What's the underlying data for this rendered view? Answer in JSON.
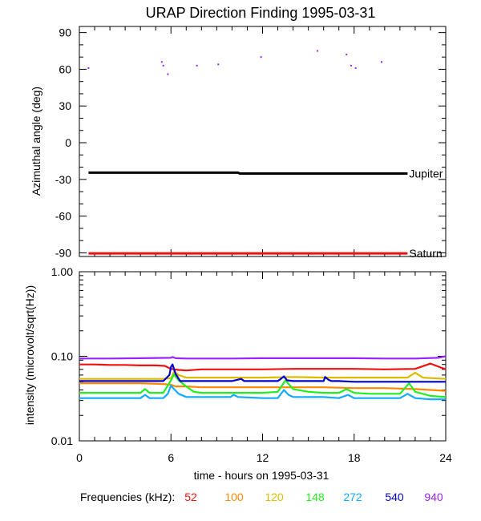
{
  "title": "URAP Direction Finding  1995-03-31",
  "chart_data": [
    {
      "type": "scatter",
      "panel": "top",
      "ylabel": "Azimuthal angle (deg)",
      "xlim": [
        0,
        24
      ],
      "ylim": [
        -93,
        95
      ],
      "yticks": [
        "90",
        "60",
        "30",
        "0",
        "-30",
        "-60",
        "-90"
      ],
      "yticks_values": [
        90,
        60,
        30,
        0,
        -30,
        -60,
        -90
      ],
      "purple_points": {
        "name": "940 kHz",
        "color": "#9922ff",
        "points": [
          [
            0.6,
            61
          ],
          [
            5.4,
            66
          ],
          [
            5.5,
            63
          ],
          [
            5.8,
            56
          ],
          [
            7.7,
            63
          ],
          [
            9.1,
            64
          ],
          [
            11.9,
            70
          ],
          [
            15.6,
            75
          ],
          [
            17.5,
            72
          ],
          [
            17.8,
            63
          ],
          [
            18.1,
            61
          ],
          [
            19.8,
            66
          ]
        ]
      },
      "reference_lines": [
        {
          "name": "Jupiter",
          "color": "#000000",
          "x": [
            0.6,
            10.4,
            10.5,
            21.5
          ],
          "y": [
            -24.5,
            -24.5,
            -25.2,
            -25.2
          ]
        },
        {
          "name": "Saturn",
          "color": "#ee1111",
          "x": [
            0.6,
            21.5
          ],
          "y": [
            -90.5,
            -90.5
          ]
        }
      ]
    },
    {
      "type": "line",
      "panel": "bottom",
      "ylabel": "intensity (microvolt/sqrt(Hz))",
      "xlabel": "time - hours on 1995-03-31",
      "xlim": [
        0,
        24
      ],
      "ylim": [
        0.01,
        1.0
      ],
      "yscale": "log",
      "yticks": [
        "1.00",
        "0.10",
        "0.01"
      ],
      "yticks_values": [
        1.0,
        0.1,
        0.01
      ],
      "xticks": [
        "0",
        "6",
        "12",
        "18",
        "24"
      ],
      "xticks_values": [
        0,
        6,
        12,
        18,
        24
      ],
      "series": [
        {
          "name": "52",
          "color": "#ee1111",
          "x": [
            0,
            1,
            2,
            3,
            4,
            5,
            5.6,
            6,
            6.5,
            7,
            8,
            10,
            12,
            14,
            16,
            18,
            20,
            22,
            23,
            24
          ],
          "y": [
            0.08,
            0.08,
            0.079,
            0.079,
            0.078,
            0.078,
            0.077,
            0.071,
            0.069,
            0.068,
            0.07,
            0.07,
            0.07,
            0.071,
            0.071,
            0.071,
            0.07,
            0.071,
            0.082,
            0.07
          ]
        },
        {
          "name": "100",
          "color": "#ff8800",
          "x": [
            0,
            2,
            4,
            5.5,
            6,
            6.3,
            7,
            8,
            10,
            12,
            14,
            16,
            18,
            20,
            22,
            24
          ],
          "y": [
            0.048,
            0.048,
            0.048,
            0.047,
            0.046,
            0.044,
            0.044,
            0.043,
            0.043,
            0.043,
            0.043,
            0.043,
            0.042,
            0.042,
            0.041,
            0.039
          ]
        },
        {
          "name": "120",
          "color": "#ddbb00",
          "x": [
            0,
            2,
            4,
            5.5,
            6,
            6.2,
            6.5,
            7,
            8,
            10,
            12,
            14,
            16,
            18,
            20,
            21.5,
            22,
            22.5,
            24
          ],
          "y": [
            0.054,
            0.054,
            0.054,
            0.054,
            0.055,
            0.066,
            0.06,
            0.056,
            0.056,
            0.056,
            0.056,
            0.057,
            0.056,
            0.056,
            0.056,
            0.056,
            0.064,
            0.056,
            0.054
          ]
        },
        {
          "name": "148",
          "color": "#22ee22",
          "x": [
            0,
            2,
            4,
            4.3,
            4.6,
            5.5,
            6,
            6.2,
            6.5,
            7,
            7.5,
            8,
            10,
            12,
            13,
            13.5,
            14,
            15,
            16,
            17,
            17.5,
            18,
            19,
            20,
            21,
            21.6,
            22,
            22.5,
            23,
            24
          ],
          "y": [
            0.037,
            0.037,
            0.037,
            0.041,
            0.037,
            0.037,
            0.052,
            0.061,
            0.052,
            0.044,
            0.038,
            0.037,
            0.037,
            0.037,
            0.038,
            0.052,
            0.041,
            0.038,
            0.037,
            0.037,
            0.041,
            0.037,
            0.036,
            0.036,
            0.036,
            0.048,
            0.038,
            0.036,
            0.034,
            0.033
          ]
        },
        {
          "name": "272",
          "color": "#11aaff",
          "x": [
            0,
            2,
            4,
            4.3,
            4.6,
            5.5,
            5.8,
            6,
            6.2,
            6.5,
            7,
            8,
            9.9,
            10.1,
            10.4,
            12,
            13,
            13.4,
            13.7,
            14,
            15,
            16,
            17,
            17.6,
            18,
            20,
            21,
            21.5,
            22,
            23,
            24
          ],
          "y": [
            0.032,
            0.032,
            0.032,
            0.035,
            0.032,
            0.032,
            0.036,
            0.045,
            0.041,
            0.036,
            0.033,
            0.033,
            0.033,
            0.035,
            0.033,
            0.032,
            0.032,
            0.04,
            0.035,
            0.033,
            0.033,
            0.033,
            0.032,
            0.035,
            0.032,
            0.032,
            0.032,
            0.036,
            0.032,
            0.031,
            0.031
          ]
        },
        {
          "name": "540",
          "color": "#0000cc",
          "x": [
            0,
            2,
            4,
            5.5,
            5.9,
            6,
            6.1,
            6.3,
            6.6,
            8,
            10,
            10.6,
            10.8,
            11,
            12,
            13,
            13.2,
            13.4,
            13.6,
            14,
            15,
            16,
            16.1,
            16.3,
            16.5,
            17,
            18,
            20,
            22,
            24
          ],
          "y": [
            0.051,
            0.051,
            0.051,
            0.051,
            0.06,
            0.075,
            0.08,
            0.062,
            0.051,
            0.051,
            0.051,
            0.054,
            0.051,
            0.051,
            0.051,
            0.051,
            0.054,
            0.058,
            0.052,
            0.051,
            0.051,
            0.051,
            0.057,
            0.053,
            0.051,
            0.051,
            0.05,
            0.05,
            0.05,
            0.05
          ]
        },
        {
          "name": "940",
          "color": "#9922ff",
          "x": [
            0,
            2,
            4,
            6,
            6.1,
            6.3,
            7,
            8,
            10,
            12,
            14,
            16,
            18,
            20,
            22,
            23.5,
            24
          ],
          "y": [
            0.094,
            0.094,
            0.095,
            0.096,
            0.098,
            0.095,
            0.094,
            0.094,
            0.094,
            0.095,
            0.095,
            0.095,
            0.095,
            0.094,
            0.094,
            0.096,
            0.1
          ]
        }
      ]
    }
  ],
  "top_ticks_labels": {
    "jupiter": "Jupiter",
    "saturn": "Saturn"
  },
  "legend": {
    "prefix": "Frequencies (kHz):",
    "items": [
      {
        "label": "52",
        "color": "#ee1111"
      },
      {
        "label": "100",
        "color": "#ff8800"
      },
      {
        "label": "120",
        "color": "#ddbb00"
      },
      {
        "label": "148",
        "color": "#22ee22"
      },
      {
        "label": "272",
        "color": "#11aaff"
      },
      {
        "label": "540",
        "color": "#0000cc"
      },
      {
        "label": "940",
        "color": "#9922ff"
      }
    ]
  }
}
